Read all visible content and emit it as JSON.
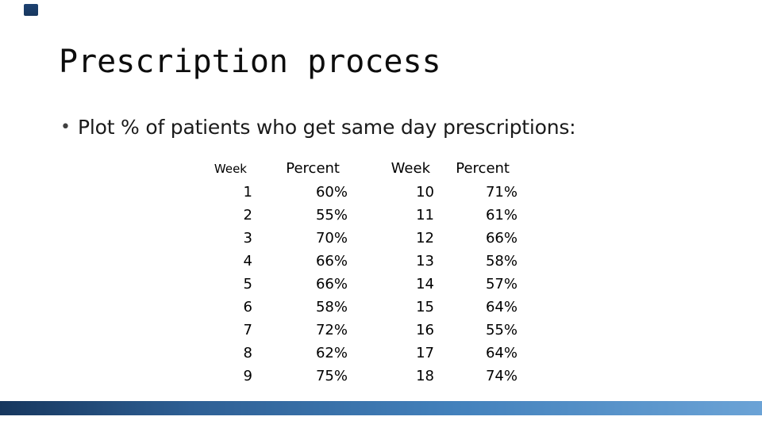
{
  "slide": {
    "title": "Prescription process",
    "bullet_glyph": "•",
    "bullet_text": "Plot % of patients who get same day prescriptions:"
  },
  "table": {
    "headers": [
      "Week",
      "Percent",
      "Week",
      "Percent"
    ],
    "rows": [
      [
        "1",
        "60%",
        "10",
        "71%"
      ],
      [
        "2",
        "55%",
        "11",
        "61%"
      ],
      [
        "3",
        "70%",
        "12",
        "66%"
      ],
      [
        "4",
        "66%",
        "13",
        "58%"
      ],
      [
        "5",
        "66%",
        "14",
        "57%"
      ],
      [
        "6",
        "58%",
        "15",
        "64%"
      ],
      [
        "7",
        "72%",
        "16",
        "55%"
      ],
      [
        "8",
        "62%",
        "17",
        "64%"
      ],
      [
        "9",
        "75%",
        "18",
        "74%"
      ]
    ]
  },
  "chart_data": {
    "type": "table",
    "title": "Prescription process",
    "xlabel": "Week",
    "ylabel": "Percent",
    "weeks": [
      1,
      2,
      3,
      4,
      5,
      6,
      7,
      8,
      9,
      10,
      11,
      12,
      13,
      14,
      15,
      16,
      17,
      18
    ],
    "percent_values": [
      60,
      55,
      70,
      66,
      66,
      58,
      72,
      62,
      75,
      71,
      61,
      66,
      58,
      57,
      64,
      55,
      64,
      74
    ]
  },
  "colors": {
    "accent_square": "#17375e",
    "bottom_bar_start": "#17375e",
    "bottom_bar_end": "#6ba3d6",
    "title_text": "#0d0d0d",
    "body_text": "#1a1a1a"
  }
}
